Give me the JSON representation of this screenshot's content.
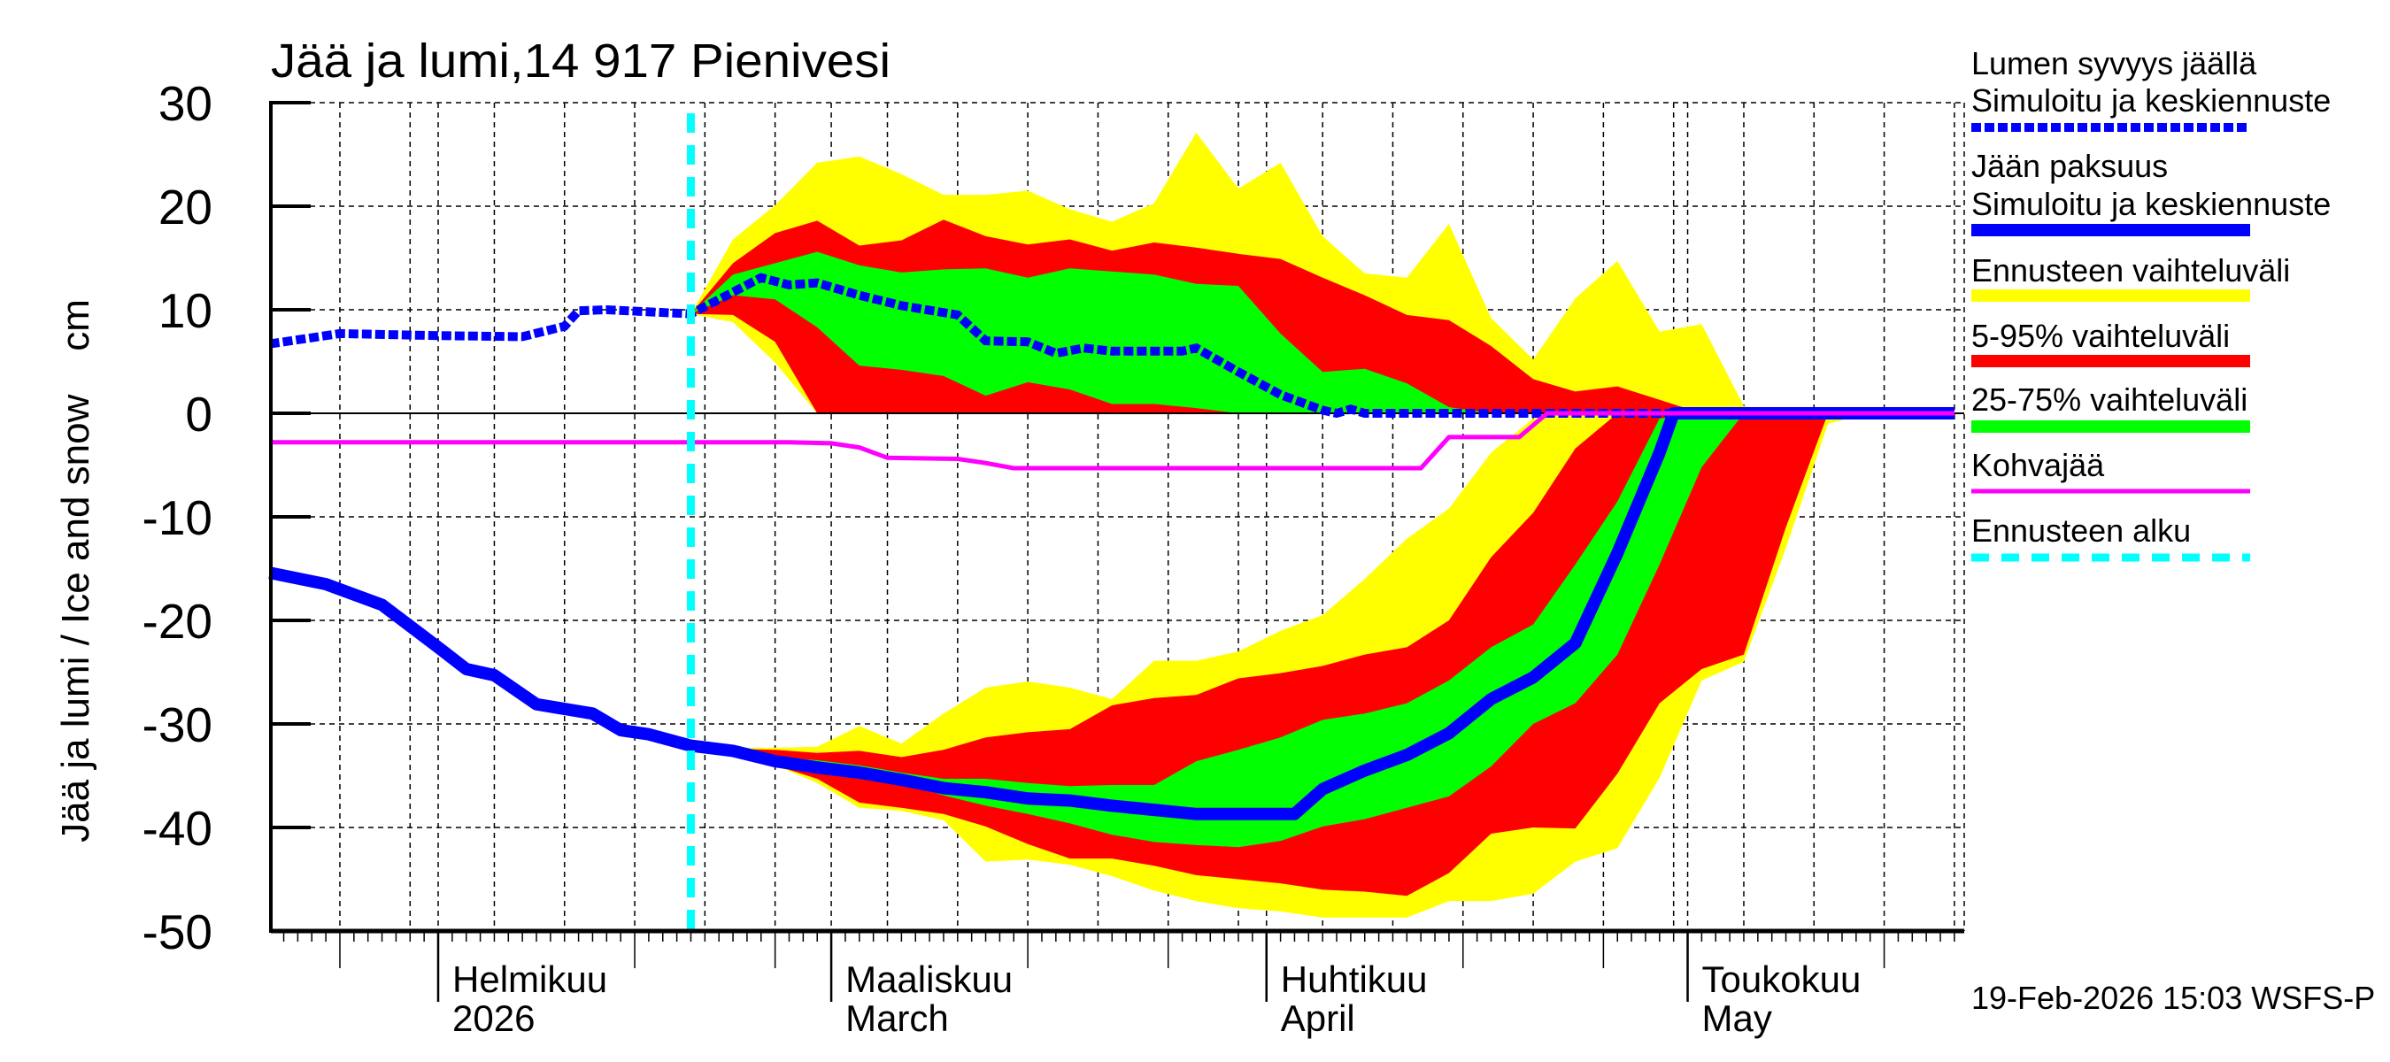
{
  "chart_data": {
    "type": "area",
    "title": "Jää ja lumi,14 917 Pienivesi",
    "ylabel": "Jää ja lumi / Ice and snow    cm",
    "ylim": [
      -50,
      30
    ],
    "yticks": [
      "30",
      "20",
      "10",
      "0",
      "-10",
      "-20",
      "-30",
      "-40",
      "-50"
    ],
    "xlim": [
      "2026-01-20",
      "2026-05-20"
    ],
    "grid": true,
    "legend_position": "right",
    "x_month_labels": [
      {
        "date": "2026-02-01",
        "fi": "Helmikuu",
        "en": "2026"
      },
      {
        "date": "2026-03-01",
        "fi": "Maaliskuu",
        "en": "March"
      },
      {
        "date": "2026-04-01",
        "fi": "Huhtikuu",
        "en": "April"
      },
      {
        "date": "2026-05-01",
        "fi": "Toukokuu",
        "en": "May"
      }
    ],
    "forecast_start": "2026-02-19",
    "forecast_dates": [
      "2026-02-19",
      "2026-02-22",
      "2026-02-25",
      "2026-02-28",
      "2026-03-03",
      "2026-03-06",
      "2026-03-09",
      "2026-03-12",
      "2026-03-15",
      "2026-03-18",
      "2026-03-21",
      "2026-03-24",
      "2026-03-27",
      "2026-03-30",
      "2026-04-02",
      "2026-04-05",
      "2026-04-08",
      "2026-04-11",
      "2026-04-14",
      "2026-04-17",
      "2026-04-20",
      "2026-04-23",
      "2026-04-26",
      "2026-04-29",
      "2026-05-02",
      "2026-05-05",
      "2026-05-08",
      "2026-05-11",
      "2026-05-14",
      "2026-05-17",
      "2026-05-20"
    ],
    "bands": {
      "snow": {
        "range": {
          "low": [
            9.6,
            8.8,
            4.9,
            0,
            0,
            0,
            0,
            0,
            0,
            0,
            0,
            0,
            0,
            0,
            0,
            0,
            0,
            0,
            0,
            0,
            0,
            0,
            0,
            0,
            0,
            0,
            0,
            0,
            0,
            0,
            0
          ],
          "high": [
            9.6,
            16.8,
            20.1,
            24.2,
            24.8,
            23.1,
            21.1,
            21.1,
            21.5,
            19.7,
            18.5,
            20.3,
            27.1,
            21.7,
            24.2,
            17.1,
            13.5,
            13.1,
            18.3,
            9.2,
            5.2,
            11.1,
            14.7,
            7.9,
            8.6,
            0.7,
            0,
            0,
            0,
            0,
            0
          ]
        },
        "p5_95": {
          "low": [
            9.6,
            9.5,
            6.9,
            0,
            0,
            0,
            0,
            0,
            0,
            0,
            0,
            0,
            0,
            0,
            0,
            0,
            0,
            0,
            0,
            0,
            0,
            0,
            0,
            0,
            0,
            0,
            0,
            0,
            0,
            0,
            0
          ],
          "high": [
            9.6,
            14.5,
            17.4,
            18.6,
            16.2,
            16.7,
            18.7,
            17.1,
            16.3,
            16.8,
            15.7,
            16.5,
            16,
            15.4,
            14.9,
            13.1,
            11.4,
            9.5,
            9.0,
            6.5,
            3.3,
            2.1,
            2.6,
            1.3,
            0,
            0,
            0,
            0,
            0,
            0,
            0
          ]
        },
        "p25_75": {
          "low": [
            9.6,
            11.4,
            11.0,
            8.3,
            4.6,
            4.2,
            3.6,
            1.7,
            3.0,
            2.3,
            0.9,
            0.9,
            0.5,
            0,
            0,
            0,
            0,
            0,
            0,
            0,
            0,
            0,
            0,
            0,
            0,
            0,
            0,
            0,
            0,
            0,
            0
          ],
          "high": [
            9.6,
            13.4,
            14.5,
            15.6,
            14.3,
            13.6,
            13.9,
            14.0,
            13.1,
            14.0,
            13.7,
            13.4,
            12.5,
            12.3,
            7.7,
            4.0,
            4.3,
            2.9,
            0.6,
            0,
            0,
            0,
            0,
            0,
            0,
            0,
            0,
            0,
            0,
            0,
            0
          ]
        }
      },
      "ice": {
        "range": {
          "low": [
            -32.1,
            -32.7,
            -34.0,
            -35.7,
            -38.1,
            -38.4,
            -39.3,
            -43.3,
            -43.1,
            -43.6,
            -44.7,
            -46.1,
            -47.1,
            -47.8,
            -48.1,
            -48.7,
            -48.7,
            -48.7,
            -47.1,
            -47.1,
            -46.4,
            -43.3,
            -42,
            -35.2,
            -25.8,
            -24,
            -13,
            -1,
            0,
            0,
            0
          ],
          "high": [
            -32.1,
            -32.3,
            -32.3,
            -32.2,
            -30.2,
            -31.9,
            -29.0,
            -26.5,
            -25.9,
            -26.5,
            -27.6,
            -23.9,
            -23.9,
            -23,
            -21,
            -19.5,
            -16,
            -12.1,
            -9.2,
            -3.8,
            -0.5,
            0,
            0,
            0,
            0,
            0,
            0,
            0,
            0,
            0,
            0
          ]
        },
        "p5_95": {
          "low": [
            -32.1,
            -32.6,
            -34.0,
            -35.3,
            -37.6,
            -38.1,
            -38.7,
            -39.9,
            -41.6,
            -43,
            -43,
            -43.7,
            -44.6,
            -45,
            -45.4,
            -46,
            -46.2,
            -46.6,
            -44.4,
            -40.6,
            -40,
            -40.1,
            -34.8,
            -28,
            -24.7,
            -23.3,
            -11,
            0,
            0,
            0,
            0
          ],
          "high": [
            -32.1,
            -32.4,
            -32.5,
            -32.8,
            -32.6,
            -33.2,
            -32.5,
            -31.3,
            -30.8,
            -30.5,
            -28.2,
            -27.5,
            -27.2,
            -25.6,
            -25.1,
            -24.4,
            -23.3,
            -22.6,
            -20,
            -13.9,
            -9.6,
            -3.4,
            0,
            0,
            0,
            0,
            0,
            0,
            0,
            0,
            0
          ]
        },
        "p25_75": {
          "low": [
            -32.1,
            -32.5,
            -34.0,
            -34.7,
            -35.3,
            -35.7,
            -36.9,
            -37.9,
            -38.7,
            -39.6,
            -40.7,
            -41.4,
            -41.7,
            -41.9,
            -41.3,
            -39.9,
            -39.2,
            -38.1,
            -37,
            -34.1,
            -30,
            -28,
            -23.3,
            -14.6,
            -5.2,
            0,
            0,
            0,
            0,
            0,
            0
          ],
          "high": [
            -32.1,
            -32.5,
            -33.2,
            -33.5,
            -34.0,
            -34.7,
            -35.3,
            -35.3,
            -35.7,
            -36.0,
            -35.9,
            -35.9,
            -33.6,
            -32.5,
            -31.3,
            -29.6,
            -29,
            -28,
            -25.8,
            -22.6,
            -20.4,
            -14.6,
            -8.5,
            -0.5,
            0,
            0,
            0,
            0,
            0,
            0,
            0
          ]
        }
      }
    },
    "series": [
      {
        "name": "Lumen syvyys jäällä — Simuloitu ja keskiennuste",
        "key": "snow",
        "points": [
          [
            "2026-01-20",
            6.7
          ],
          [
            "2026-01-25",
            7.7
          ],
          [
            "2026-02-01",
            7.5
          ],
          [
            "2026-02-07",
            7.4
          ],
          [
            "2026-02-10",
            8.4
          ],
          [
            "2026-02-11",
            9.9
          ],
          [
            "2026-02-13",
            10
          ],
          [
            "2026-02-16",
            9.8
          ],
          [
            "2026-02-19",
            9.6
          ],
          [
            "2026-02-22",
            11.7
          ],
          [
            "2026-02-24",
            13.1
          ],
          [
            "2026-02-26",
            12.4
          ],
          [
            "2026-02-28",
            12.6
          ],
          [
            "2026-03-03",
            11.4
          ],
          [
            "2026-03-06",
            10.4
          ],
          [
            "2026-03-10",
            9.5
          ],
          [
            "2026-03-12",
            7
          ],
          [
            "2026-03-15",
            6.9
          ],
          [
            "2026-03-17",
            5.8
          ],
          [
            "2026-03-19",
            6.3
          ],
          [
            "2026-03-21",
            6
          ],
          [
            "2026-03-26",
            6
          ],
          [
            "2026-03-27",
            6.3
          ],
          [
            "2026-03-30",
            4
          ],
          [
            "2026-04-02",
            1.8
          ],
          [
            "2026-04-05",
            0.3
          ],
          [
            "2026-04-06",
            0
          ],
          [
            "2026-04-07",
            0.4
          ],
          [
            "2026-04-08",
            0
          ],
          [
            "2026-05-20",
            0
          ]
        ]
      },
      {
        "name": "Jään paksuus — Simuloitu ja keskiennuste",
        "key": "ice",
        "points": [
          [
            "2026-01-20",
            -15.4
          ],
          [
            "2026-01-24",
            -16.5
          ],
          [
            "2026-01-28",
            -18.5
          ],
          [
            "2026-02-01",
            -22.6
          ],
          [
            "2026-02-03",
            -24.7
          ],
          [
            "2026-02-05",
            -25.3
          ],
          [
            "2026-02-08",
            -28.1
          ],
          [
            "2026-02-12",
            -29
          ],
          [
            "2026-02-14",
            -30.6
          ],
          [
            "2026-02-16",
            -31
          ],
          [
            "2026-02-19",
            -32.1
          ],
          [
            "2026-02-22",
            -32.6
          ],
          [
            "2026-02-25",
            -33.6
          ],
          [
            "2026-02-28",
            -34.2
          ],
          [
            "2026-03-03",
            -34.7
          ],
          [
            "2026-03-06",
            -35.4
          ],
          [
            "2026-03-09",
            -36.2
          ],
          [
            "2026-03-12",
            -36.6
          ],
          [
            "2026-03-15",
            -37.2
          ],
          [
            "2026-03-18",
            -37.4
          ],
          [
            "2026-03-21",
            -37.9
          ],
          [
            "2026-03-24",
            -38.3
          ],
          [
            "2026-03-27",
            -38.7
          ],
          [
            "2026-03-30",
            -38.7
          ],
          [
            "2026-04-03",
            -38.7
          ],
          [
            "2026-04-05",
            -36.3
          ],
          [
            "2026-04-08",
            -34.5
          ],
          [
            "2026-04-11",
            -33
          ],
          [
            "2026-04-14",
            -30.9
          ],
          [
            "2026-04-17",
            -27.6
          ],
          [
            "2026-04-20",
            -25.5
          ],
          [
            "2026-04-23",
            -22.2
          ],
          [
            "2026-04-26",
            -13.5
          ],
          [
            "2026-04-29",
            -3.8
          ],
          [
            "2026-04-30",
            0
          ],
          [
            "2026-05-20",
            0
          ]
        ]
      },
      {
        "name": "Kohvajää",
        "key": "kohva",
        "points": [
          [
            "2026-01-20",
            -2.8
          ],
          [
            "2026-02-26",
            -2.8
          ],
          [
            "2026-03-01",
            -2.9
          ],
          [
            "2026-03-03",
            -3.3
          ],
          [
            "2026-03-05",
            -4.3
          ],
          [
            "2026-03-10",
            -4.4
          ],
          [
            "2026-03-12",
            -4.8
          ],
          [
            "2026-03-14",
            -5.3
          ],
          [
            "2026-04-12",
            -5.3
          ],
          [
            "2026-04-14",
            -2.3
          ],
          [
            "2026-04-19",
            -2.3
          ],
          [
            "2026-04-21",
            0
          ],
          [
            "2026-05-20",
            0
          ]
        ]
      }
    ],
    "colors": {
      "range": "#ffff00",
      "p5_95": "#ff0000",
      "p25_75": "#00ff00",
      "median": "#0000ff",
      "kohva": "#ff00ff",
      "forecast_start": "#00ffff"
    }
  },
  "legend": [
    {
      "line1": "Lumen syvyys jäällä",
      "line2": "Simuloitu ja keskiennuste",
      "style": "snow"
    },
    {
      "line1": "Jään paksuus",
      "line2": "Simuloitu ja keskiennuste",
      "style": "ice"
    },
    {
      "line1": "Ennusteen vaihteluväli",
      "style": "range"
    },
    {
      "line1": "5-95% vaihteluväli",
      "style": "p5_95"
    },
    {
      "line1": "25-75% vaihteluväli",
      "style": "p25_75"
    },
    {
      "line1": "Kohvajää",
      "style": "kohva"
    },
    {
      "line1": "Ennusteen alku",
      "style": "forecast_start"
    }
  ],
  "footer": {
    "timestamp": "19-Feb-2026 15:03 WSFS-P"
  }
}
